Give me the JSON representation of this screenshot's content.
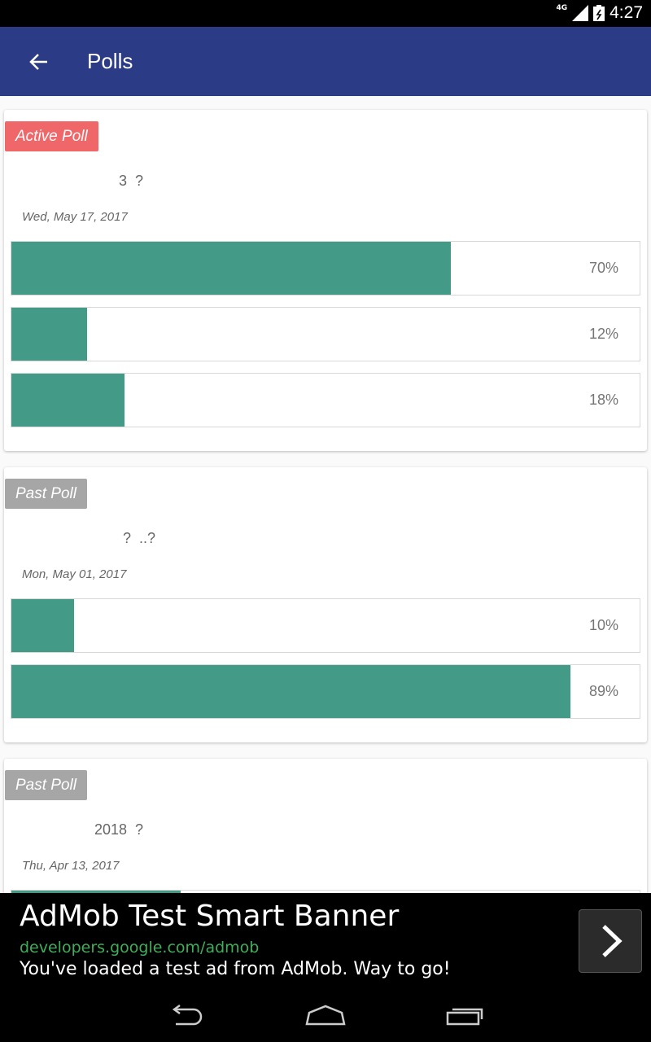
{
  "status_bar": {
    "network": "4G",
    "time": "4:27"
  },
  "app_bar": {
    "title": "Polls",
    "back_icon": "arrow-back-icon"
  },
  "polls": [
    {
      "badge": "Active Poll",
      "question": "3  ?",
      "date": "Wed, May 17, 2017",
      "options": [
        {
          "percent": 70,
          "label": "70%"
        },
        {
          "percent": 12,
          "label": "12%"
        },
        {
          "percent": 18,
          "label": "18%"
        }
      ]
    },
    {
      "badge": "Past Poll",
      "question": "?  ..?",
      "date": "Mon, May 01, 2017",
      "options": [
        {
          "percent": 10,
          "label": "10%"
        },
        {
          "percent": 89,
          "label": "89%"
        }
      ]
    },
    {
      "badge": "Past Poll",
      "question": "2018  ?",
      "date": "Thu, Apr 13, 2017",
      "options": [
        {
          "percent": 27,
          "label": ""
        }
      ]
    }
  ],
  "ad": {
    "title": "AdMob Test Smart Banner",
    "url": "developers.google.com/admob",
    "text": "You've loaded a test ad from AdMob. Way to go!",
    "button_icon": "chevron-right-icon"
  },
  "nav_bar": {
    "icons": [
      "back-icon",
      "home-icon",
      "recents-icon"
    ]
  },
  "colors": {
    "app_bar": "#2b3b86",
    "active_badge": "#f0676a",
    "past_badge": "#a6a6a6",
    "bar_fill": "#439a86",
    "ad_url": "#3fae5a"
  }
}
